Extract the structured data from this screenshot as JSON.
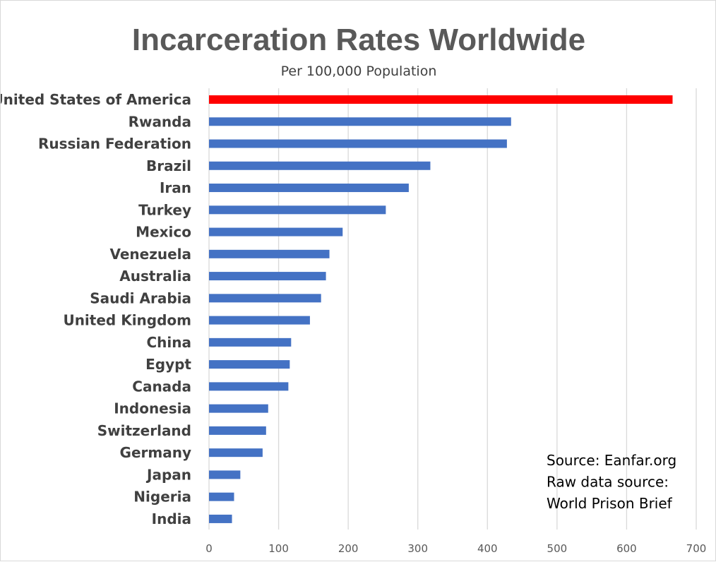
{
  "chart_data": {
    "type": "bar",
    "orientation": "horizontal",
    "title": "Incarceration Rates Worldwide",
    "subtitle": "Per 100,000 Population",
    "xlabel": "",
    "ylabel": "",
    "xlim": [
      0,
      700
    ],
    "x_ticks": [
      0,
      100,
      200,
      300,
      400,
      500,
      600,
      700
    ],
    "grid": "vertical",
    "categories": [
      "United States of America",
      "Rwanda",
      "Russian Federation",
      "Brazil",
      "Iran",
      "Turkey",
      "Mexico",
      "Venezuela",
      "Australia",
      "Saudi Arabia",
      "United Kingdom",
      "China",
      "Egypt",
      "Canada",
      "Indonesia",
      "Switzerland",
      "Germany",
      "Japan",
      "Nigeria",
      "India"
    ],
    "values": [
      666,
      434,
      428,
      318,
      287,
      254,
      192,
      173,
      168,
      161,
      145,
      118,
      116,
      114,
      85,
      82,
      77,
      45,
      36,
      33
    ],
    "bar_colors": [
      "#ff0000",
      "#4472c4",
      "#4472c4",
      "#4472c4",
      "#4472c4",
      "#4472c4",
      "#4472c4",
      "#4472c4",
      "#4472c4",
      "#4472c4",
      "#4472c4",
      "#4472c4",
      "#4472c4",
      "#4472c4",
      "#4472c4",
      "#4472c4",
      "#4472c4",
      "#4472c4",
      "#4472c4",
      "#4472c4"
    ],
    "grid_color": "#d9d9d9",
    "annotation": {
      "lines": [
        "Source: Eanfar.org",
        "Raw data source:",
        "World Prison Brief"
      ],
      "placement": "bottom-right"
    }
  }
}
